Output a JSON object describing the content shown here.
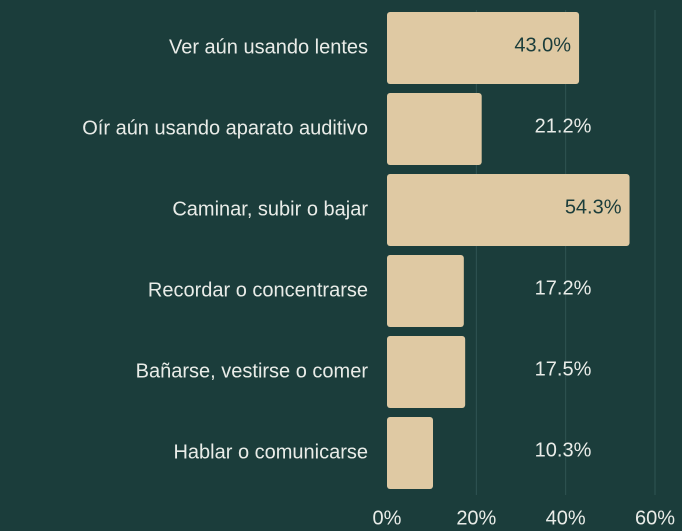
{
  "chart_data": {
    "type": "barh",
    "categories": [
      "Ver aún usando lentes",
      "Oír aún usando aparato auditivo",
      "Caminar, subir o bajar",
      "Recordar o concentrarse",
      "Bañarse, vestirse o comer",
      "Hablar o comunicarse"
    ],
    "values": [
      43.0,
      21.2,
      54.3,
      17.2,
      17.5,
      10.3
    ],
    "value_labels": [
      "43.0%",
      "21.2%",
      "54.3%",
      "17.2%",
      "17.5%",
      "10.3%"
    ],
    "color": "#dfc9a3",
    "xlim": [
      0,
      60
    ],
    "xticks": [
      {
        "value": 0,
        "label": "0%"
      },
      {
        "value": 20,
        "label": "20%"
      },
      {
        "value": 40,
        "label": "40%"
      },
      {
        "value": 60,
        "label": "60%"
      }
    ],
    "grid": true
  }
}
